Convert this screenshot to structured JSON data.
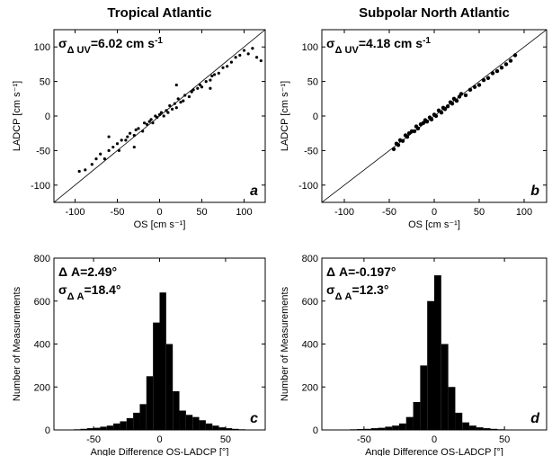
{
  "chart_data": [
    {
      "type": "scatter",
      "title": "Tropical Atlantic",
      "panel_label": "a",
      "annotations": [
        [
          {
            "text": "σ"
          },
          {
            "text": "Δ UV",
            "shift": "sub"
          },
          {
            "text": "=6.02 cm s"
          },
          {
            "text": "-1",
            "shift": "sup"
          }
        ]
      ],
      "xlabel": "OS [cm s⁻¹]",
      "ylabel": "LADCP [cm s⁻¹]",
      "xlim": [
        -125,
        125
      ],
      "ylim": [
        -125,
        125
      ],
      "xticks": [
        -100,
        -50,
        0,
        50,
        100
      ],
      "yticks": [
        -100,
        -50,
        0,
        50,
        100
      ],
      "color": "#000000",
      "x": [
        -95,
        -88,
        -80,
        -75,
        -70,
        -65,
        -60,
        -55,
        -50,
        -48,
        -45,
        -40,
        -38,
        -35,
        -30,
        -28,
        -25,
        -20,
        -18,
        -15,
        -12,
        -10,
        -8,
        -5,
        -3,
        0,
        2,
        5,
        8,
        10,
        12,
        15,
        18,
        20,
        22,
        25,
        28,
        30,
        35,
        38,
        40,
        45,
        48,
        50,
        55,
        60,
        62,
        65,
        70,
        75,
        80,
        85,
        90,
        95,
        100,
        105,
        110,
        115,
        120,
        -60,
        -30,
        20,
        60
      ],
      "y": [
        -80,
        -78,
        -70,
        -62,
        -55,
        -62,
        -50,
        -45,
        -40,
        -50,
        -35,
        -35,
        -30,
        -25,
        -28,
        -20,
        -18,
        -22,
        -10,
        -12,
        -8,
        -5,
        -10,
        0,
        -2,
        2,
        5,
        0,
        8,
        5,
        15,
        10,
        18,
        12,
        25,
        20,
        22,
        30,
        28,
        35,
        38,
        40,
        45,
        42,
        50,
        52,
        58,
        60,
        62,
        70,
        72,
        78,
        85,
        88,
        95,
        90,
        98,
        85,
        80,
        -30,
        -45,
        45,
        40
      ]
    },
    {
      "type": "scatter",
      "title": "Subpolar North Atlantic",
      "panel_label": "b",
      "annotations": [
        [
          {
            "text": "σ"
          },
          {
            "text": "Δ UV",
            "shift": "sub"
          },
          {
            "text": "=4.18 cm s"
          },
          {
            "text": "-1",
            "shift": "sup"
          }
        ]
      ],
      "xlabel": "OS [cm s⁻¹]",
      "ylabel": "LADCP [cm s⁻¹]",
      "xlim": [
        -125,
        125
      ],
      "ylim": [
        -125,
        125
      ],
      "xticks": [
        -100,
        -50,
        0,
        50,
        100
      ],
      "yticks": [
        -100,
        -50,
        0,
        50,
        100
      ],
      "color": "#000000",
      "x": [
        -45,
        -42,
        -40,
        -38,
        -35,
        -32,
        -30,
        -28,
        -25,
        -22,
        -20,
        -18,
        -15,
        -12,
        -10,
        -8,
        -5,
        -3,
        0,
        2,
        5,
        8,
        10,
        12,
        15,
        18,
        20,
        22,
        25,
        28,
        30,
        35,
        40,
        45,
        50,
        55,
        60,
        65,
        70,
        75,
        80,
        85,
        90
      ],
      "y": [
        -48,
        -40,
        -42,
        -35,
        -36,
        -28,
        -30,
        -25,
        -22,
        -22,
        -15,
        -18,
        -12,
        -10,
        -6,
        -8,
        -2,
        -5,
        2,
        0,
        8,
        5,
        12,
        10,
        14,
        20,
        18,
        25,
        22,
        28,
        32,
        30,
        38,
        42,
        45,
        52,
        55,
        62,
        65,
        70,
        75,
        80,
        88
      ]
    },
    {
      "type": "histogram",
      "panel_label": "c",
      "annotations": [
        [
          {
            "text": "Δ A=2.49°"
          }
        ],
        [
          {
            "text": "σ"
          },
          {
            "text": "Δ A",
            "shift": "sub"
          },
          {
            "text": "=18.4°"
          }
        ]
      ],
      "xlabel": "Angle Difference OS-LADCP [°]",
      "ylabel": "Number of Measurements",
      "xlim": [
        -80,
        80
      ],
      "ylim": [
        0,
        800
      ],
      "xticks": [
        -50,
        0,
        50
      ],
      "yticks": [
        0,
        200,
        400,
        600,
        800
      ],
      "color": "#000000",
      "bins": [
        -80,
        -75,
        -70,
        -65,
        -60,
        -55,
        -50,
        -45,
        -40,
        -35,
        -30,
        -25,
        -20,
        -15,
        -10,
        -5,
        0,
        5,
        10,
        15,
        20,
        25,
        30,
        35,
        40,
        45,
        50,
        55,
        60,
        65,
        70,
        75,
        80
      ],
      "values": [
        0,
        0,
        2,
        3,
        5,
        8,
        10,
        15,
        20,
        30,
        40,
        55,
        80,
        120,
        250,
        500,
        640,
        400,
        180,
        90,
        70,
        60,
        45,
        30,
        20,
        12,
        8,
        5,
        3,
        2,
        1,
        0
      ]
    },
    {
      "type": "histogram",
      "panel_label": "d",
      "annotations": [
        [
          {
            "text": "Δ A=-0.197°"
          }
        ],
        [
          {
            "text": "σ"
          },
          {
            "text": "Δ A",
            "shift": "sub"
          },
          {
            "text": "=12.3°"
          }
        ]
      ],
      "xlabel": "Angle Difference OS-LADCP [°]",
      "ylabel": "Number of Measurements",
      "xlim": [
        -80,
        80
      ],
      "ylim": [
        0,
        800
      ],
      "xticks": [
        -50,
        0,
        50
      ],
      "yticks": [
        0,
        200,
        400,
        600,
        800
      ],
      "color": "#000000",
      "bins": [
        -80,
        -75,
        -70,
        -65,
        -60,
        -55,
        -50,
        -45,
        -40,
        -35,
        -30,
        -25,
        -20,
        -15,
        -10,
        -5,
        0,
        5,
        10,
        15,
        20,
        25,
        30,
        35,
        40,
        45,
        50,
        55,
        60,
        65,
        70,
        75,
        80
      ],
      "values": [
        0,
        0,
        1,
        2,
        3,
        4,
        5,
        8,
        10,
        15,
        20,
        30,
        60,
        130,
        300,
        600,
        720,
        400,
        200,
        80,
        35,
        20,
        12,
        8,
        5,
        3,
        2,
        1,
        1,
        0,
        0,
        0
      ]
    }
  ]
}
